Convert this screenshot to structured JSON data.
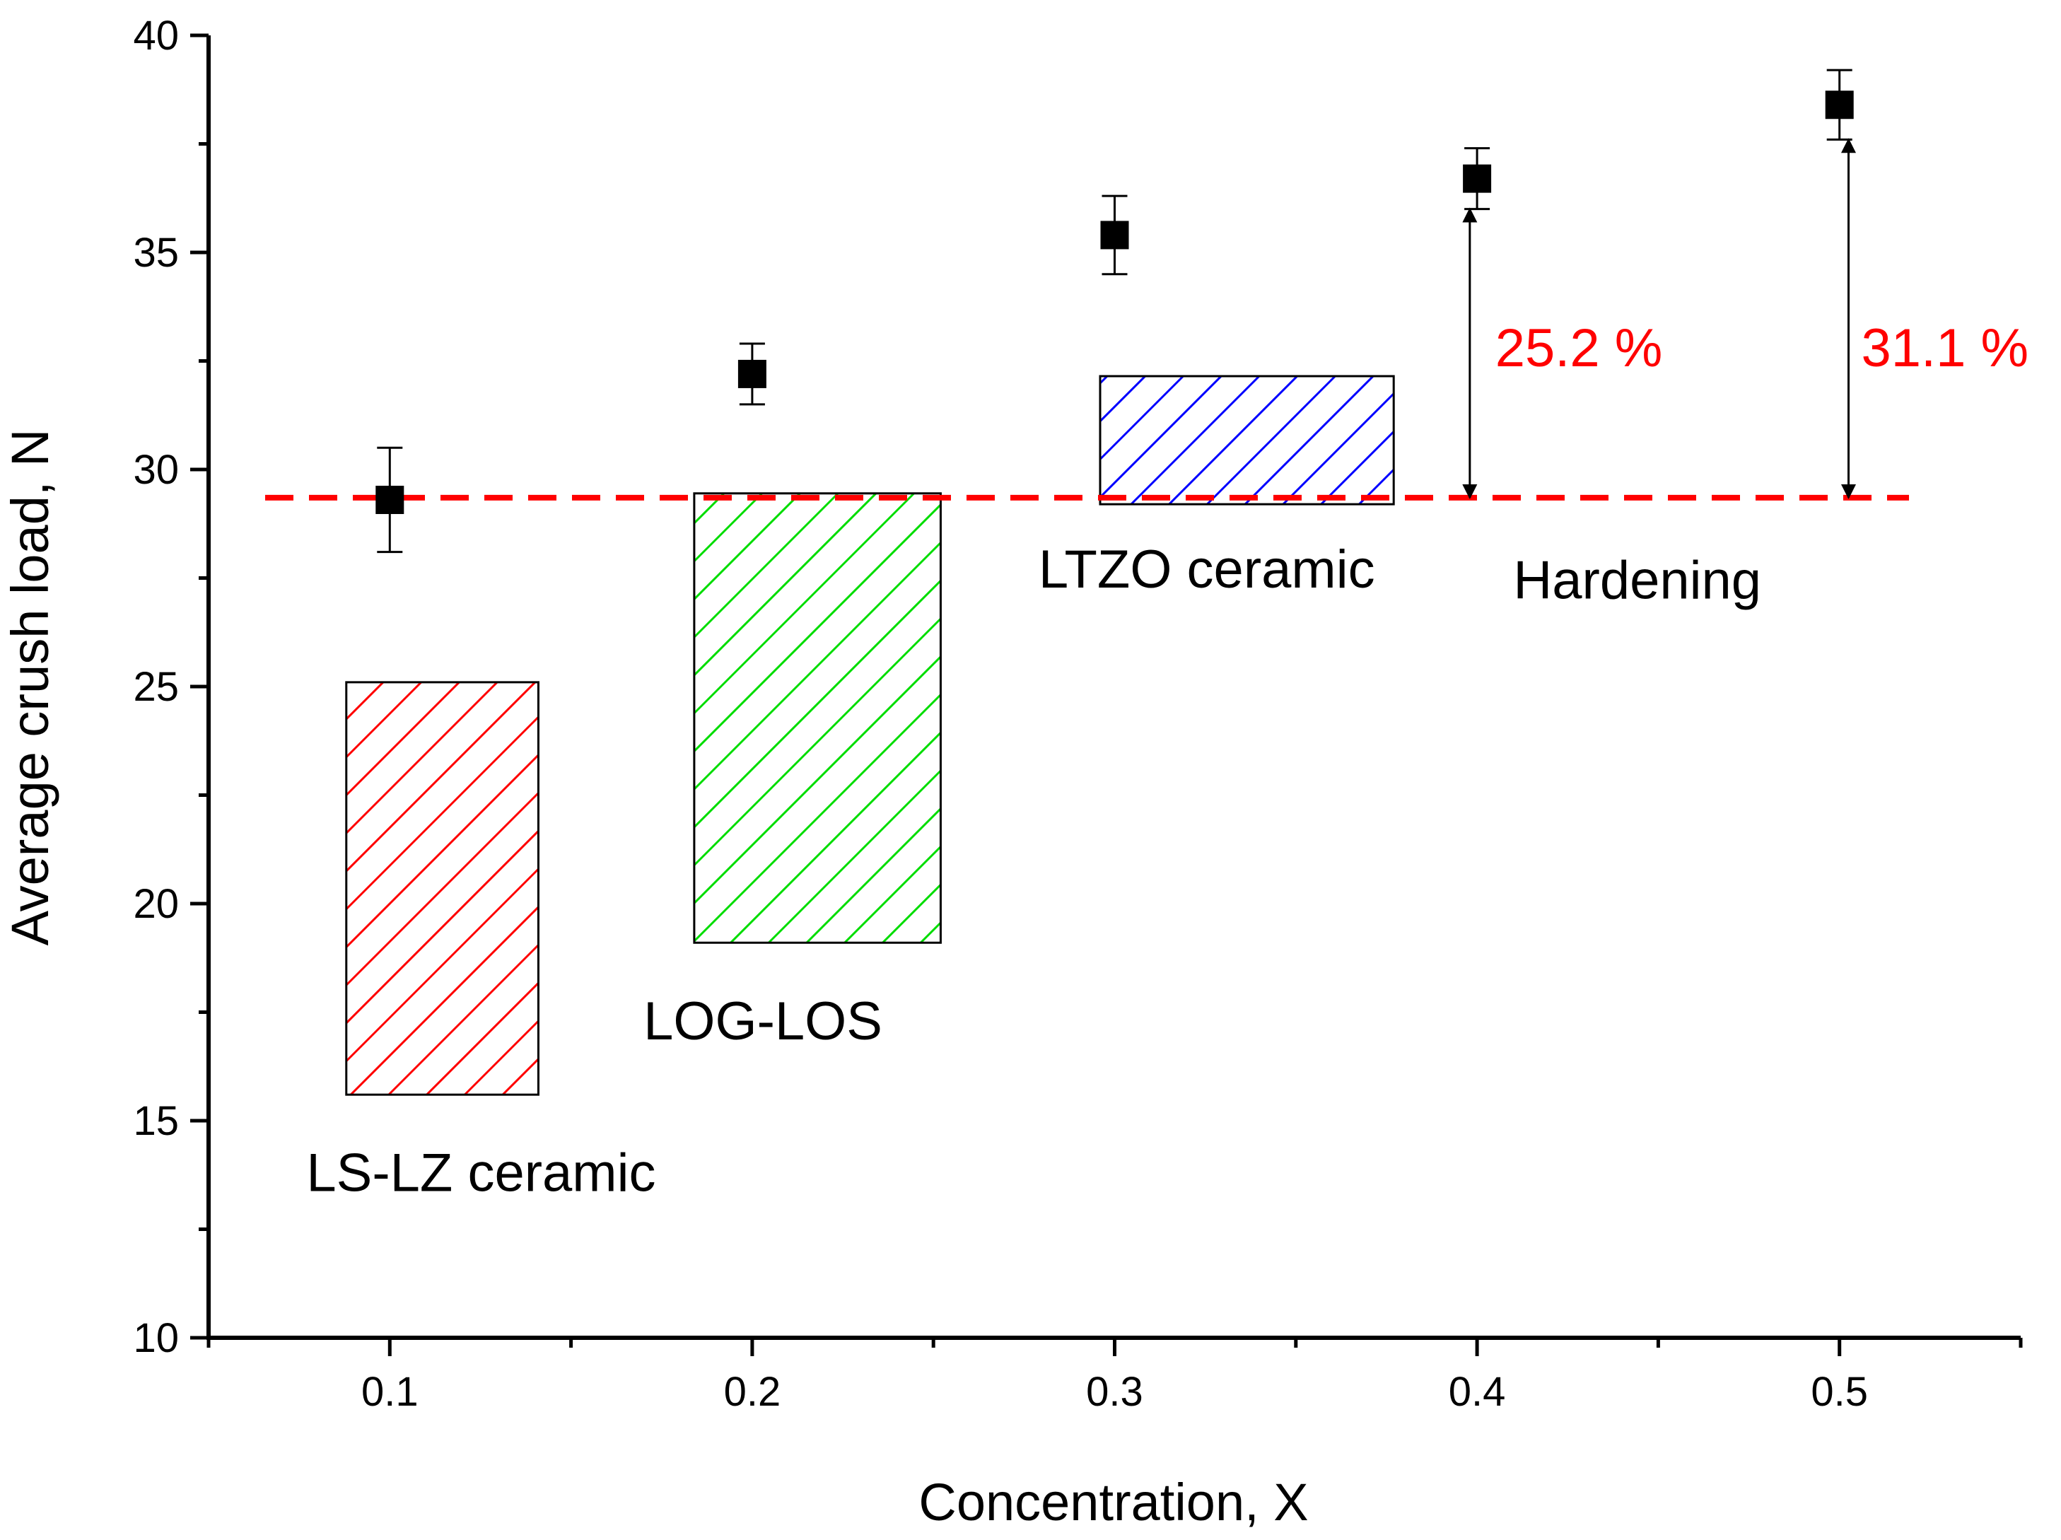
{
  "chart_data": {
    "type": "scatter",
    "title": "",
    "xlabel": "Concentration, X",
    "ylabel": "Average crush load, N",
    "xlim": [
      0.05,
      0.55
    ],
    "ylim": [
      10,
      40
    ],
    "x_ticks": [
      {
        "value": 0.1,
        "label": "0.1"
      },
      {
        "value": 0.2,
        "label": "0.2"
      },
      {
        "value": 0.3,
        "label": "0.3"
      },
      {
        "value": 0.4,
        "label": "0.4"
      },
      {
        "value": 0.5,
        "label": "0.5"
      }
    ],
    "x_minor_ticks": [
      0.05,
      0.15,
      0.25,
      0.35,
      0.45,
      0.55
    ],
    "y_ticks": [
      {
        "value": 10,
        "label": "10"
      },
      {
        "value": 15,
        "label": "15"
      },
      {
        "value": 20,
        "label": "20"
      },
      {
        "value": 25,
        "label": "25"
      },
      {
        "value": 30,
        "label": "30"
      },
      {
        "value": 35,
        "label": "35"
      },
      {
        "value": 40,
        "label": "40"
      }
    ],
    "y_minor_ticks": [
      12.5,
      17.5,
      22.5,
      27.5,
      32.5,
      37.5
    ],
    "series": [
      {
        "name": "Average crush load",
        "marker": "square",
        "color": "#000000",
        "points": [
          {
            "x": 0.1,
            "y": 29.3,
            "err_low": 28.1,
            "err_high": 30.5
          },
          {
            "x": 0.2,
            "y": 32.2,
            "err_low": 31.5,
            "err_high": 32.9
          },
          {
            "x": 0.3,
            "y": 35.4,
            "err_low": 34.5,
            "err_high": 36.3
          },
          {
            "x": 0.4,
            "y": 36.7,
            "err_low": 36.0,
            "err_high": 37.4
          },
          {
            "x": 0.5,
            "y": 38.4,
            "err_low": 37.6,
            "err_high": 39.2
          }
        ]
      }
    ],
    "reference_line": {
      "y": 29.35,
      "color": "#ff0000",
      "style": "dashed"
    },
    "reference_ranges": [
      {
        "label": "LS-LZ ceramic",
        "x0": 0.088,
        "x1": 0.141,
        "y0": 15.6,
        "y1": 25.1,
        "color": "#ff0000",
        "label_x": 0.077,
        "label_y": 13.8
      },
      {
        "label": "LOG-LOS",
        "x0": 0.184,
        "x1": 0.252,
        "y0": 19.1,
        "y1": 29.45,
        "color": "#00dd00",
        "label_x": 0.17,
        "label_y": 17.3
      },
      {
        "label": "LTZO ceramic",
        "x0": 0.296,
        "x1": 0.377,
        "y0": 29.2,
        "y1": 32.15,
        "color": "#0000ff",
        "label_x": 0.279,
        "label_y": 27.7
      }
    ],
    "annotations": [
      {
        "id": "hardening",
        "text": "Hardening",
        "color": "#000000",
        "x": 0.41,
        "y": 27.45
      },
      {
        "id": "pct-04",
        "text": "25.2 %",
        "color": "#ff0000",
        "x": 0.405,
        "y": 32.8
      },
      {
        "id": "pct-05",
        "text": "31.1 %",
        "color": "#ff0000",
        "x": 0.506,
        "y": 32.8
      }
    ],
    "arrows": [
      {
        "x": 0.398,
        "y_from": 29.35,
        "y_to": 36.0
      },
      {
        "x": 0.5025,
        "y_from": 29.35,
        "y_to": 37.6
      }
    ]
  }
}
